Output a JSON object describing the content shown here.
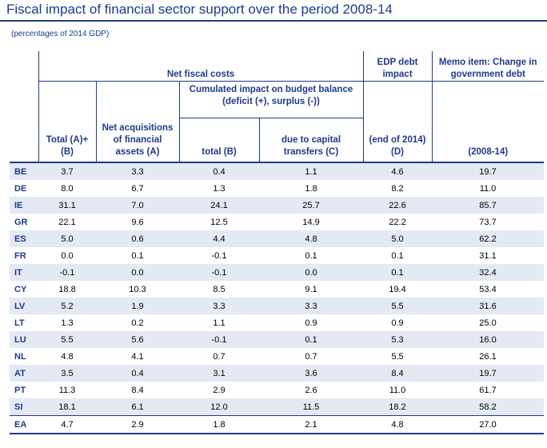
{
  "title": "Fiscal impact of financial sector support over the period 2008-14",
  "subtitle": "(percentages of 2014 GDP)",
  "headers": {
    "net_fiscal_costs": "Net fiscal costs",
    "edp_debt_impact": "EDP debt impact",
    "memo_item": "Memo item: Change in government debt",
    "cumulated_impact": "Cumulated impact on budget balance (deficit (+), surplus (-))",
    "total_ab": "Total (A)+(B)",
    "net_acquisitions": "Net acquisitions of financial assets (A)",
    "total_b": "total (B)",
    "capital_transfers": "due to capital transfers (C)",
    "end_2014": "(end of 2014) (D)",
    "period": "(2008-14)"
  },
  "rows": [
    {
      "country": "BE",
      "total": "3.7",
      "acq": "3.3",
      "bal_total": "0.4",
      "cap": "1.1",
      "edp": "4.6",
      "memo": "19.7"
    },
    {
      "country": "DE",
      "total": "8.0",
      "acq": "6.7",
      "bal_total": "1.3",
      "cap": "1.8",
      "edp": "8.2",
      "memo": "11.0"
    },
    {
      "country": "IE",
      "total": "31.1",
      "acq": "7.0",
      "bal_total": "24.1",
      "cap": "25.7",
      "edp": "22.6",
      "memo": "85.7"
    },
    {
      "country": "GR",
      "total": "22.1",
      "acq": "9.6",
      "bal_total": "12.5",
      "cap": "14.9",
      "edp": "22.2",
      "memo": "73.7"
    },
    {
      "country": "ES",
      "total": "5.0",
      "acq": "0.6",
      "bal_total": "4.4",
      "cap": "4.8",
      "edp": "5.0",
      "memo": "62.2"
    },
    {
      "country": "FR",
      "total": "0.0",
      "acq": "0.1",
      "bal_total": "-0.1",
      "cap": "0.1",
      "edp": "0.1",
      "memo": "31.1"
    },
    {
      "country": "IT",
      "total": "-0.1",
      "acq": "0.0",
      "bal_total": "-0.1",
      "cap": "0.0",
      "edp": "0.1",
      "memo": "32.4"
    },
    {
      "country": "CY",
      "total": "18.8",
      "acq": "10.3",
      "bal_total": "8.5",
      "cap": "9.1",
      "edp": "19.4",
      "memo": "53.4"
    },
    {
      "country": "LV",
      "total": "5.2",
      "acq": "1.9",
      "bal_total": "3.3",
      "cap": "3.3",
      "edp": "5.5",
      "memo": "31.6"
    },
    {
      "country": "LT",
      "total": "1.3",
      "acq": "0.2",
      "bal_total": "1.1",
      "cap": "0.9",
      "edp": "0.9",
      "memo": "25.0"
    },
    {
      "country": "LU",
      "total": "5.5",
      "acq": "5.6",
      "bal_total": "-0.1",
      "cap": "0.1",
      "edp": "5.3",
      "memo": "16.0"
    },
    {
      "country": "NL",
      "total": "4.8",
      "acq": "4.1",
      "bal_total": "0.7",
      "cap": "0.7",
      "edp": "5.5",
      "memo": "26.1"
    },
    {
      "country": "AT",
      "total": "3.5",
      "acq": "0.4",
      "bal_total": "3.1",
      "cap": "3.6",
      "edp": "8.4",
      "memo": "19.7"
    },
    {
      "country": "PT",
      "total": "11.3",
      "acq": "8.4",
      "bal_total": "2.9",
      "cap": "2.6",
      "edp": "11.0",
      "memo": "61.7"
    },
    {
      "country": "SI",
      "total": "18.1",
      "acq": "6.1",
      "bal_total": "12.0",
      "cap": "11.5",
      "edp": "18.2",
      "memo": "58.2"
    }
  ],
  "ea_row": {
    "country": "EA",
    "total": "4.7",
    "acq": "2.9",
    "bal_total": "1.8",
    "cap": "2.1",
    "edp": "4.8",
    "memo": "27.0"
  }
}
